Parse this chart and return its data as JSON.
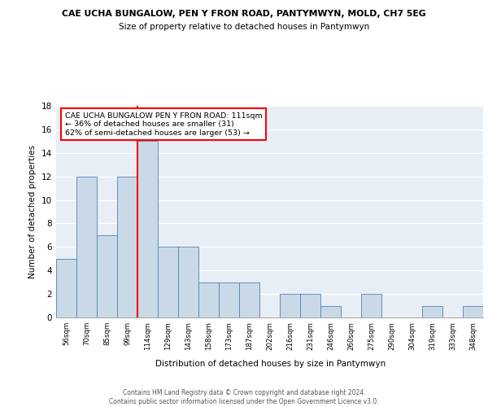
{
  "title1": "CAE UCHA BUNGALOW, PEN Y FRON ROAD, PANTYMWYN, MOLD, CH7 5EG",
  "title2": "Size of property relative to detached houses in Pantymwyn",
  "xlabel": "Distribution of detached houses by size in Pantymwyn",
  "ylabel": "Number of detached properties",
  "bin_labels": [
    "56sqm",
    "70sqm",
    "85sqm",
    "99sqm",
    "114sqm",
    "129sqm",
    "143sqm",
    "158sqm",
    "173sqm",
    "187sqm",
    "202sqm",
    "216sqm",
    "231sqm",
    "246sqm",
    "260sqm",
    "275sqm",
    "290sqm",
    "304sqm",
    "319sqm",
    "333sqm",
    "348sqm"
  ],
  "counts": [
    5,
    12,
    7,
    12,
    15,
    6,
    6,
    3,
    3,
    3,
    0,
    2,
    2,
    1,
    0,
    2,
    0,
    0,
    1,
    0,
    1
  ],
  "bar_color": "#c9d9e8",
  "bar_edge_color": "#5580b0",
  "vline_color": "red",
  "annotation_text": "CAE UCHA BUNGALOW PEN Y FRON ROAD: 111sqm\n← 36% of detached houses are smaller (31)\n62% of semi-detached houses are larger (53) →",
  "annotation_box_color": "white",
  "annotation_box_edge_color": "red",
  "ylim": [
    0,
    18
  ],
  "yticks": [
    0,
    2,
    4,
    6,
    8,
    10,
    12,
    14,
    16,
    18
  ],
  "footer1": "Contains HM Land Registry data © Crown copyright and database right 2024.",
  "footer2": "Contains public sector information licensed under the Open Government Licence v3.0.",
  "bg_color": "#e8eef5",
  "grid_color": "white"
}
